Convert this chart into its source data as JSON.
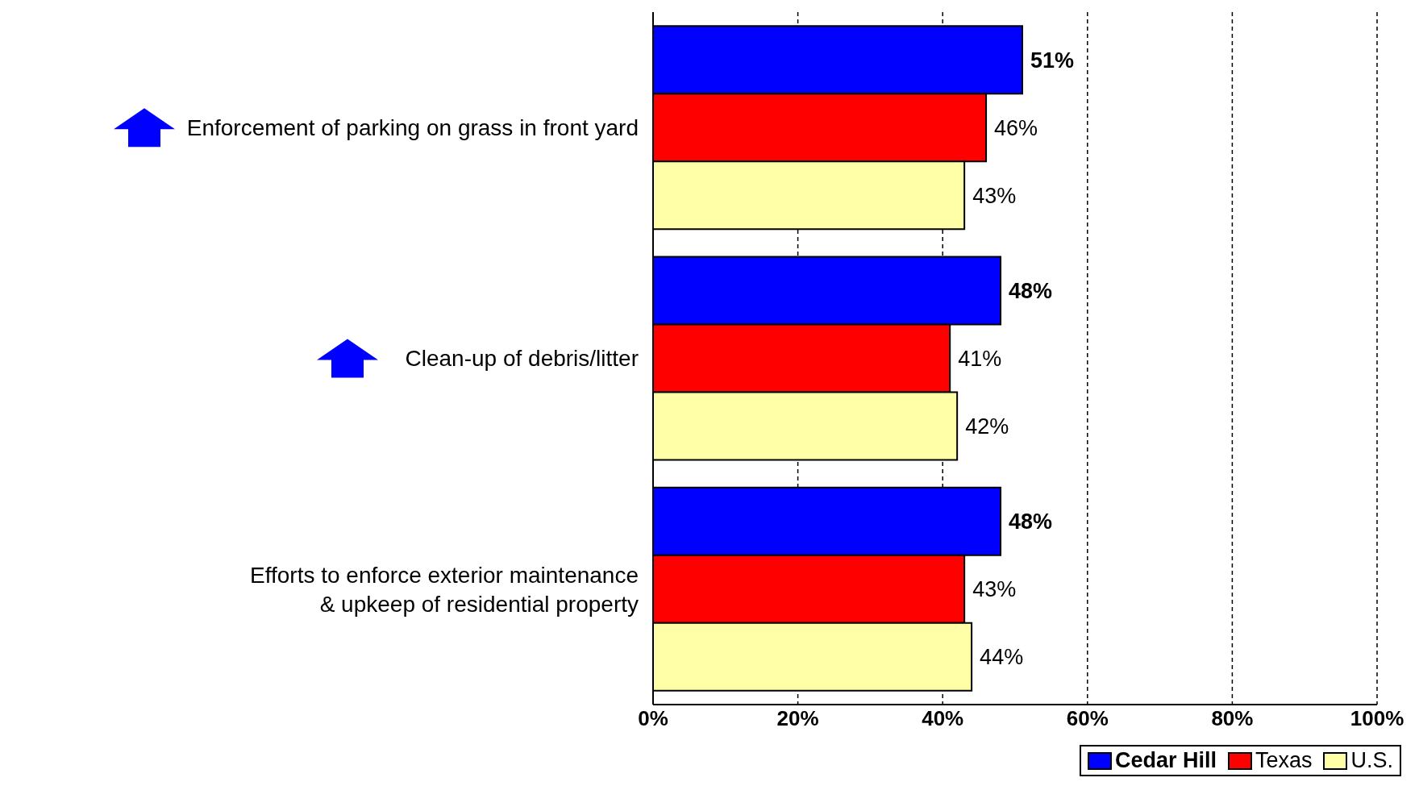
{
  "chart_data": {
    "type": "bar",
    "orientation": "horizontal",
    "categories": [
      "Enforcement of parking on grass in front yard",
      "Clean-up of debris/litter",
      "Efforts to enforce exterior maintenance\n& upkeep of residential property"
    ],
    "series": [
      {
        "name": "Cedar Hill",
        "color": "#0000ff",
        "values": [
          51,
          48,
          48
        ],
        "value_labels": [
          "51%",
          "48%",
          "48%"
        ]
      },
      {
        "name": "Texas",
        "color": "#ff0000",
        "values": [
          46,
          41,
          43
        ],
        "value_labels": [
          "46%",
          "41%",
          "43%"
        ]
      },
      {
        "name": "U.S.",
        "color": "#ffffa8",
        "values": [
          43,
          42,
          44
        ],
        "value_labels": [
          "43%",
          "42%",
          "44%"
        ]
      }
    ],
    "xlim": [
      0,
      100
    ],
    "xticks": [
      {
        "value": 0,
        "label": "0%"
      },
      {
        "value": 20,
        "label": "20%"
      },
      {
        "value": 40,
        "label": "40%"
      },
      {
        "value": 60,
        "label": "60%"
      },
      {
        "value": 80,
        "label": "80%"
      },
      {
        "value": 100,
        "label": "100%"
      }
    ],
    "grid": "x",
    "legend": "bottom right"
  }
}
